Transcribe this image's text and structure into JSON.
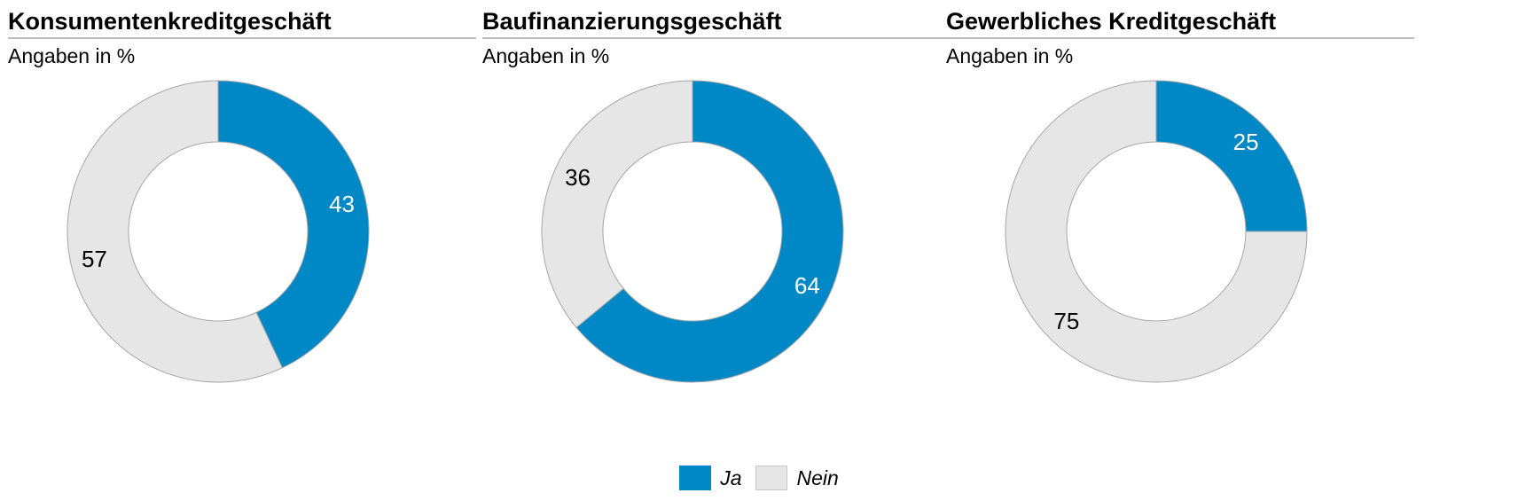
{
  "colors": {
    "ja": "#0088c6",
    "nein": "#e6e6e6",
    "stroke": "#a6a6a6"
  },
  "chart_data": [
    {
      "type": "pie",
      "title": "Konsumentenkreditgeschäft",
      "subtitle": "Angaben in %",
      "categories": [
        "Ja",
        "Nein"
      ],
      "values": [
        43,
        57
      ]
    },
    {
      "type": "pie",
      "title": "Baufinanzierungsgeschäft",
      "subtitle": "Angaben in %",
      "categories": [
        "Ja",
        "Nein"
      ],
      "values": [
        64,
        36
      ]
    },
    {
      "type": "pie",
      "title": "Gewerbliches Kreditgeschäft",
      "subtitle": "Angaben in %",
      "categories": [
        "Ja",
        "Nein"
      ],
      "values": [
        25,
        75
      ]
    }
  ],
  "legend": {
    "placement": "bottom-center",
    "items": [
      {
        "label": "Ja",
        "color": "#0088c6"
      },
      {
        "label": "Nein",
        "color": "#e6e6e6"
      }
    ]
  }
}
